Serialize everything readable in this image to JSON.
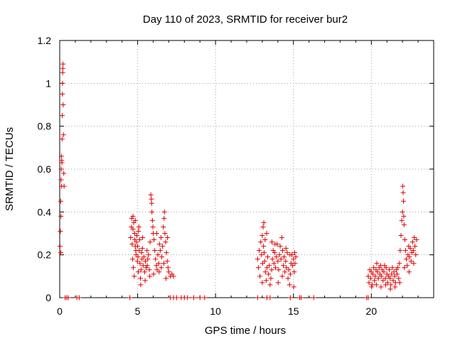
{
  "chart_data": {
    "type": "scatter",
    "title": "Day 110 of 2023, SRMTID for receiver bur2",
    "xlabel": "GPS time / hours",
    "ylabel": "SRMTID / TECUs",
    "xlim": [
      0,
      24
    ],
    "ylim": [
      0,
      1.2
    ],
    "xticks": [
      0,
      5,
      10,
      15,
      20
    ],
    "yticks": [
      0,
      0.2,
      0.4,
      0.6,
      0.8,
      1,
      1.2
    ],
    "xtick_labels": [
      "0",
      "5",
      "10",
      "15",
      "20"
    ],
    "ytick_labels": [
      "0",
      "0.2",
      "0.4",
      "0.6",
      "0.8",
      "1",
      "1.2"
    ],
    "grid": true,
    "marker": "+",
    "color": "#dd0000",
    "series": [
      {
        "name": "bur2",
        "points": [
          [
            0.02,
            0.24
          ],
          [
            0.04,
            0.31
          ],
          [
            0.06,
            0.45
          ],
          [
            0.07,
            0.21
          ],
          [
            0.08,
            0.38
          ],
          [
            0.09,
            0.55
          ],
          [
            0.1,
            0.6
          ],
          [
            0.11,
            0.66
          ],
          [
            0.12,
            0.52
          ],
          [
            0.13,
            0.64
          ],
          [
            0.14,
            0.63
          ],
          [
            0.15,
            0.74
          ],
          [
            0.16,
            0.85
          ],
          [
            0.17,
            0.95
          ],
          [
            0.18,
            1.0
          ],
          [
            0.19,
            1.05
          ],
          [
            0.2,
            1.07
          ],
          [
            0.21,
            1.09
          ],
          [
            0.22,
            0.9
          ],
          [
            0.24,
            0.76
          ],
          [
            0.26,
            0.58
          ],
          [
            0.28,
            0.52
          ],
          [
            0.35,
            0.0
          ],
          [
            0.45,
            0.0
          ],
          [
            0.55,
            0.0
          ],
          [
            1.1,
            0.0
          ],
          [
            1.25,
            0.0
          ],
          [
            4.5,
            0.0
          ],
          [
            7.1,
            0.0
          ],
          [
            7.3,
            0.0
          ],
          [
            7.5,
            0.0
          ],
          [
            7.8,
            0.0
          ],
          [
            8.0,
            0.0
          ],
          [
            8.2,
            0.0
          ],
          [
            8.6,
            0.0
          ],
          [
            9.0,
            0.0
          ],
          [
            9.3,
            0.0
          ],
          [
            12.7,
            0.0
          ],
          [
            13.3,
            0.0
          ],
          [
            13.5,
            0.0
          ],
          [
            14.8,
            0.0
          ],
          [
            15.4,
            0.0
          ],
          [
            15.5,
            0.0
          ],
          [
            16.3,
            0.0
          ],
          [
            19.7,
            0.0
          ],
          [
            19.8,
            0.0
          ],
          [
            4.55,
            0.28
          ],
          [
            4.6,
            0.33
          ],
          [
            4.62,
            0.37
          ],
          [
            4.65,
            0.25
          ],
          [
            4.68,
            0.18
          ],
          [
            4.7,
            0.32
          ],
          [
            4.72,
            0.14
          ],
          [
            4.75,
            0.35
          ],
          [
            4.78,
            0.1
          ],
          [
            4.8,
            0.3
          ],
          [
            4.82,
            0.27
          ],
          [
            4.85,
            0.24
          ],
          [
            4.88,
            0.22
          ],
          [
            4.9,
            0.2
          ],
          [
            4.92,
            0.26
          ],
          [
            4.95,
            0.29
          ],
          [
            4.98,
            0.17
          ],
          [
            5.0,
            0.24
          ],
          [
            5.02,
            0.19
          ],
          [
            5.05,
            0.31
          ],
          [
            5.08,
            0.33
          ],
          [
            5.1,
            0.22
          ],
          [
            5.12,
            0.27
          ],
          [
            5.15,
            0.16
          ],
          [
            5.18,
            0.09
          ],
          [
            5.2,
            0.06
          ],
          [
            5.22,
            0.13
          ],
          [
            5.25,
            0.21
          ],
          [
            5.28,
            0.18
          ],
          [
            5.3,
            0.23
          ],
          [
            5.35,
            0.15
          ],
          [
            5.4,
            0.19
          ],
          [
            5.45,
            0.12
          ],
          [
            5.5,
            0.17
          ],
          [
            5.55,
            0.14
          ],
          [
            5.6,
            0.22
          ],
          [
            5.65,
            0.18
          ],
          [
            5.7,
            0.2
          ],
          [
            5.75,
            0.13
          ],
          [
            5.8,
            0.26
          ],
          [
            5.85,
            0.48
          ],
          [
            5.88,
            0.46
          ],
          [
            5.9,
            0.44
          ],
          [
            5.92,
            0.4
          ],
          [
            5.95,
            0.36
          ],
          [
            5.98,
            0.33
          ],
          [
            6.0,
            0.3
          ],
          [
            6.05,
            0.27
          ],
          [
            6.1,
            0.22
          ],
          [
            6.15,
            0.18
          ],
          [
            6.2,
            0.15
          ],
          [
            6.25,
            0.13
          ],
          [
            6.3,
            0.2
          ],
          [
            6.35,
            0.16
          ],
          [
            6.4,
            0.25
          ],
          [
            6.45,
            0.22
          ],
          [
            6.5,
            0.28
          ],
          [
            6.55,
            0.19
          ],
          [
            6.6,
            0.24
          ],
          [
            6.65,
            0.33
          ],
          [
            6.7,
            0.37
          ],
          [
            6.72,
            0.4
          ],
          [
            6.75,
            0.3
          ],
          [
            6.8,
            0.26
          ],
          [
            6.85,
            0.21
          ],
          [
            6.9,
            0.17
          ],
          [
            6.95,
            0.14
          ],
          [
            7.0,
            0.12
          ],
          [
            7.1,
            0.1
          ],
          [
            7.2,
            0.11
          ],
          [
            7.3,
            0.1
          ],
          [
            4.7,
            0.38
          ],
          [
            4.85,
            0.36
          ],
          [
            5.05,
            0.12
          ],
          [
            5.32,
            0.28
          ],
          [
            5.48,
            0.08
          ],
          [
            5.62,
            0.15
          ],
          [
            5.78,
            0.1
          ],
          [
            6.02,
            0.11
          ],
          [
            6.22,
            0.3
          ],
          [
            6.38,
            0.12
          ],
          [
            6.52,
            0.14
          ],
          [
            6.68,
            0.16
          ],
          [
            6.82,
            0.09
          ],
          [
            6.92,
            0.28
          ],
          [
            12.7,
            0.18
          ],
          [
            12.75,
            0.14
          ],
          [
            12.8,
            0.22
          ],
          [
            12.85,
            0.1
          ],
          [
            12.9,
            0.26
          ],
          [
            12.95,
            0.2
          ],
          [
            13.0,
            0.29
          ],
          [
            13.02,
            0.16
          ],
          [
            13.05,
            0.33
          ],
          [
            13.08,
            0.24
          ],
          [
            13.1,
            0.35
          ],
          [
            13.12,
            0.21
          ],
          [
            13.15,
            0.17
          ],
          [
            13.18,
            0.27
          ],
          [
            13.2,
            0.12
          ],
          [
            13.25,
            0.08
          ],
          [
            13.3,
            0.14
          ],
          [
            13.35,
            0.19
          ],
          [
            13.4,
            0.11
          ],
          [
            13.45,
            0.15
          ],
          [
            13.5,
            0.06
          ],
          [
            13.55,
            0.09
          ],
          [
            13.6,
            0.13
          ],
          [
            13.65,
            0.18
          ],
          [
            13.7,
            0.22
          ],
          [
            13.75,
            0.16
          ],
          [
            13.8,
            0.21
          ],
          [
            13.85,
            0.14
          ],
          [
            13.9,
            0.19
          ],
          [
            13.95,
            0.25
          ],
          [
            14.0,
            0.17
          ],
          [
            14.05,
            0.13
          ],
          [
            14.1,
            0.2
          ],
          [
            14.15,
            0.24
          ],
          [
            14.2,
            0.18
          ],
          [
            14.25,
            0.28
          ],
          [
            14.3,
            0.22
          ],
          [
            14.35,
            0.15
          ],
          [
            14.4,
            0.19
          ],
          [
            14.45,
            0.12
          ],
          [
            14.5,
            0.17
          ],
          [
            14.55,
            0.14
          ],
          [
            14.6,
            0.21
          ],
          [
            14.65,
            0.09
          ],
          [
            14.7,
            0.13
          ],
          [
            14.75,
            0.06
          ],
          [
            14.8,
            0.11
          ],
          [
            14.85,
            0.16
          ],
          [
            14.9,
            0.2
          ],
          [
            14.95,
            0.15
          ],
          [
            15.0,
            0.18
          ],
          [
            15.05,
            0.12
          ],
          [
            15.1,
            0.16
          ],
          [
            15.15,
            0.19
          ],
          [
            13.0,
            0.07
          ],
          [
            13.28,
            0.3
          ],
          [
            13.62,
            0.26
          ],
          [
            13.82,
            0.25
          ],
          [
            14.02,
            0.07
          ],
          [
            14.28,
            0.1
          ],
          [
            14.52,
            0.23
          ],
          [
            14.78,
            0.2
          ],
          [
            15.02,
            0.05
          ],
          [
            15.08,
            0.21
          ],
          [
            19.8,
            0.1
          ],
          [
            19.85,
            0.07
          ],
          [
            19.9,
            0.13
          ],
          [
            19.95,
            0.09
          ],
          [
            20.0,
            0.12
          ],
          [
            20.05,
            0.06
          ],
          [
            20.1,
            0.11
          ],
          [
            20.15,
            0.14
          ],
          [
            20.2,
            0.08
          ],
          [
            20.25,
            0.1
          ],
          [
            20.3,
            0.13
          ],
          [
            20.35,
            0.16
          ],
          [
            20.4,
            0.12
          ],
          [
            20.45,
            0.09
          ],
          [
            20.5,
            0.14
          ],
          [
            20.55,
            0.11
          ],
          [
            20.6,
            0.15
          ],
          [
            20.65,
            0.1
          ],
          [
            20.7,
            0.13
          ],
          [
            20.75,
            0.08
          ],
          [
            20.8,
            0.12
          ],
          [
            20.85,
            0.15
          ],
          [
            20.9,
            0.09
          ],
          [
            20.95,
            0.14
          ],
          [
            21.0,
            0.11
          ],
          [
            21.05,
            0.07
          ],
          [
            21.1,
            0.1
          ],
          [
            21.15,
            0.13
          ],
          [
            21.2,
            0.09
          ],
          [
            21.25,
            0.06
          ],
          [
            21.3,
            0.11
          ],
          [
            21.35,
            0.14
          ],
          [
            21.4,
            0.08
          ],
          [
            21.45,
            0.12
          ],
          [
            21.5,
            0.1
          ],
          [
            21.55,
            0.07
          ],
          [
            21.6,
            0.13
          ],
          [
            21.65,
            0.11
          ],
          [
            21.7,
            0.14
          ],
          [
            21.75,
            0.09
          ],
          [
            21.8,
            0.16
          ],
          [
            21.85,
            0.22
          ],
          [
            21.9,
            0.29
          ],
          [
            21.95,
            0.36
          ],
          [
            22.0,
            0.4
          ],
          [
            22.02,
            0.52
          ],
          [
            22.04,
            0.49
          ],
          [
            22.06,
            0.45
          ],
          [
            22.08,
            0.38
          ],
          [
            22.1,
            0.34
          ],
          [
            22.15,
            0.27
          ],
          [
            22.2,
            0.22
          ],
          [
            22.25,
            0.18
          ],
          [
            22.3,
            0.15
          ],
          [
            22.35,
            0.2
          ],
          [
            22.4,
            0.24
          ],
          [
            22.45,
            0.19
          ],
          [
            22.5,
            0.23
          ],
          [
            22.55,
            0.17
          ],
          [
            22.6,
            0.21
          ],
          [
            22.65,
            0.26
          ],
          [
            22.7,
            0.22
          ],
          [
            22.75,
            0.28
          ],
          [
            22.8,
            0.24
          ],
          [
            22.85,
            0.2
          ],
          [
            22.9,
            0.27
          ],
          [
            20.02,
            0.05
          ],
          [
            20.32,
            0.06
          ],
          [
            20.62,
            0.05
          ],
          [
            20.92,
            0.06
          ],
          [
            21.22,
            0.04
          ],
          [
            21.52,
            0.05
          ],
          [
            21.82,
            0.07
          ],
          [
            22.12,
            0.14
          ],
          [
            22.42,
            0.12
          ],
          [
            22.72,
            0.16
          ]
        ]
      }
    ]
  }
}
